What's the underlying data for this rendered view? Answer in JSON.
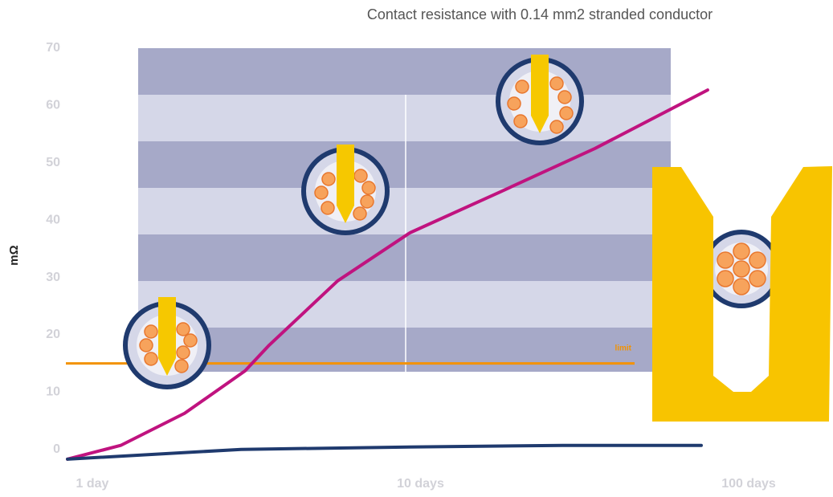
{
  "chart_data": {
    "type": "line",
    "title": "Contact resistance with 0.14 mm2 stranded conductor",
    "y_label": "mΩ",
    "log_x": true,
    "xlim": [
      1,
      100
    ],
    "xticks": [
      {
        "value": 1,
        "label": "1 day"
      },
      {
        "value": 10,
        "label": "10 days"
      },
      {
        "value": 100,
        "label": "100 days"
      }
    ],
    "ylim": [
      -2,
      70
    ],
    "yticks": [
      0,
      10,
      20,
      30,
      40,
      50,
      60,
      70
    ],
    "limit_line": {
      "value": 15,
      "label": "limit",
      "color": "#f39200"
    },
    "series": [
      {
        "color": "#c0137f",
        "x": [
          0.84,
          1.22,
          1.91,
          2.92,
          3.46,
          5.59,
          9.29,
          17.3,
          34.0,
          75.0
        ],
        "values": [
          -1.7,
          0.7,
          6.3,
          13.7,
          18.2,
          29.4,
          37.8,
          44.8,
          52.5,
          62.7
        ]
      },
      {
        "color": "#1f3a6e",
        "x": [
          0.84,
          2.84,
          8.79,
          27.1,
          71.7
        ],
        "values": [
          -1.7,
          0,
          0.4,
          0.7,
          0.7
        ]
      }
    ]
  }
}
